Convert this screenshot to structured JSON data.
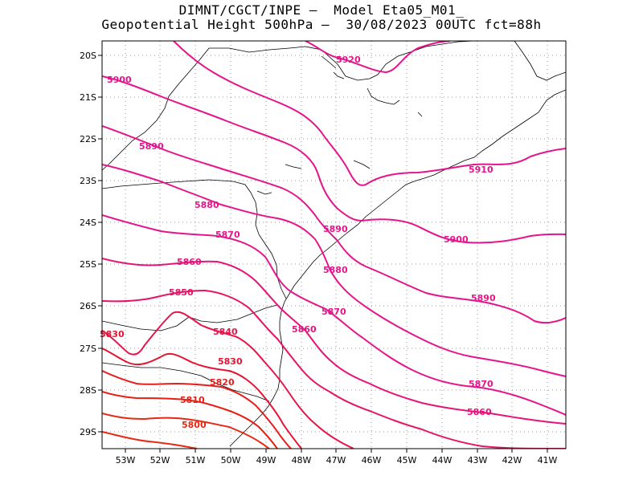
{
  "title": {
    "line1": "DIMNT/CGCT/INPE –  Model Eta05_M01_",
    "line2": "Geopotential Height 500hPa –  30/08/2023 00UTC fct=88h"
  },
  "axes": {
    "lat_labels": [
      "20S",
      "21S",
      "22S",
      "23S",
      "24S",
      "25S",
      "26S",
      "27S",
      "28S",
      "29S"
    ],
    "lon_labels": [
      "53W",
      "52W",
      "51W",
      "50W",
      "49W",
      "48W",
      "47W",
      "46W",
      "45W",
      "44W",
      "43W",
      "42W",
      "41W"
    ]
  },
  "contours": [
    {
      "value": "5920",
      "color": "#e6148c"
    },
    {
      "value": "5910",
      "color": "#e6148c"
    },
    {
      "value": "5900",
      "color": "#e6148c"
    },
    {
      "value": "5890",
      "color": "#e6148c"
    },
    {
      "value": "5880",
      "color": "#e6148c"
    },
    {
      "value": "5870",
      "color": "#e6148c"
    },
    {
      "value": "5860",
      "color": "#e6147a"
    },
    {
      "value": "5850",
      "color": "#e61464"
    },
    {
      "value": "5840",
      "color": "#e6144a"
    },
    {
      "value": "5830",
      "color": "#e61432"
    },
    {
      "value": "5820",
      "color": "#e61e1e"
    },
    {
      "value": "5810",
      "color": "#e61e14"
    },
    {
      "value": "5800",
      "color": "#e62814"
    }
  ]
}
